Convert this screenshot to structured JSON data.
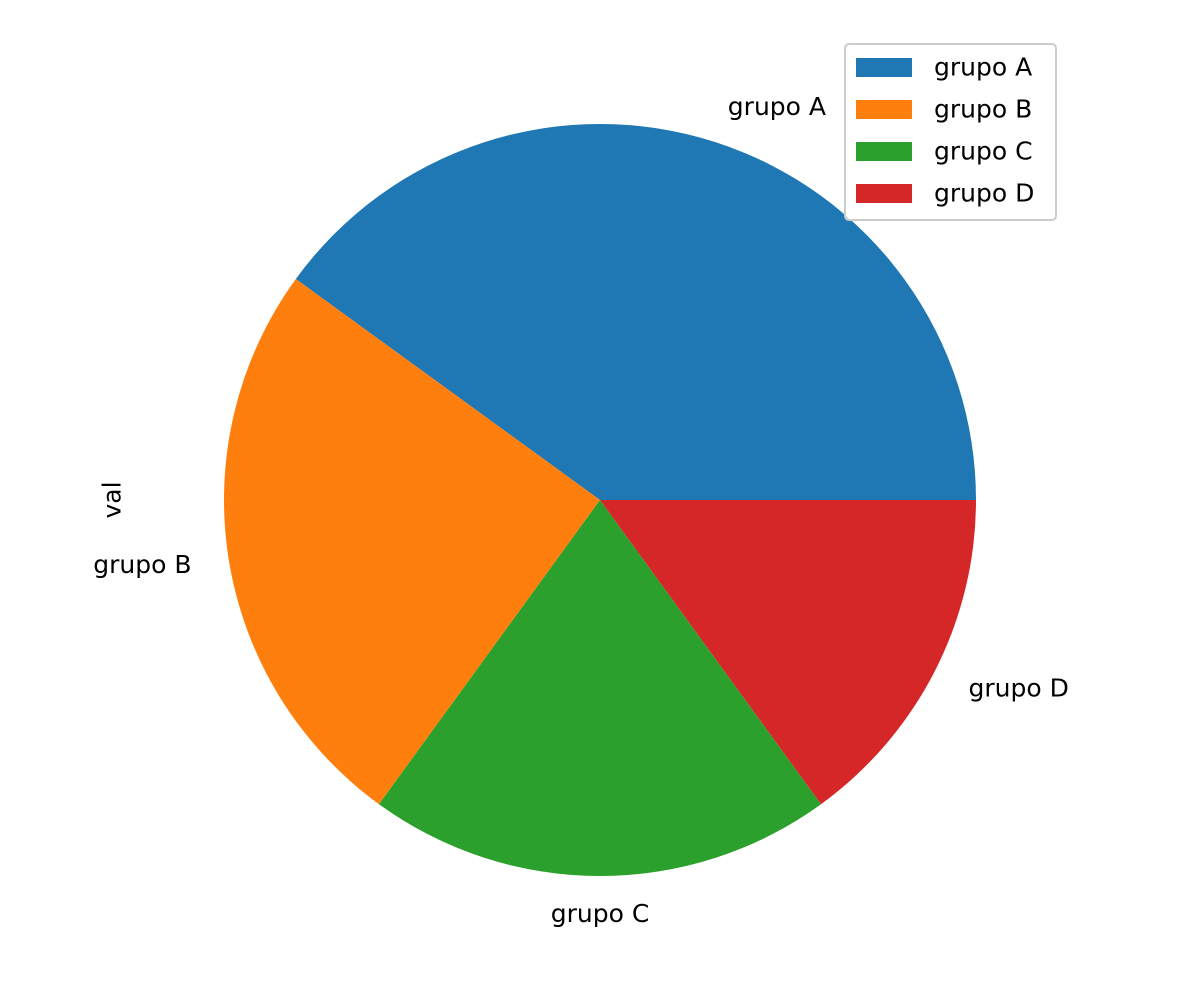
{
  "chart_data": {
    "type": "pie",
    "title": "",
    "ylabel": "val",
    "categories": [
      "grupo A",
      "grupo B",
      "grupo C",
      "grupo D"
    ],
    "values": [
      40,
      25,
      20,
      15
    ],
    "colors": [
      "#1f77b4",
      "#ff7f0e",
      "#2ca02c",
      "#d62728"
    ],
    "start_angle_deg": 0,
    "direction": "counterclockwise",
    "legend": {
      "placement": "top-right",
      "entries": [
        "grupo A",
        "grupo B",
        "grupo C",
        "grupo D"
      ]
    }
  }
}
